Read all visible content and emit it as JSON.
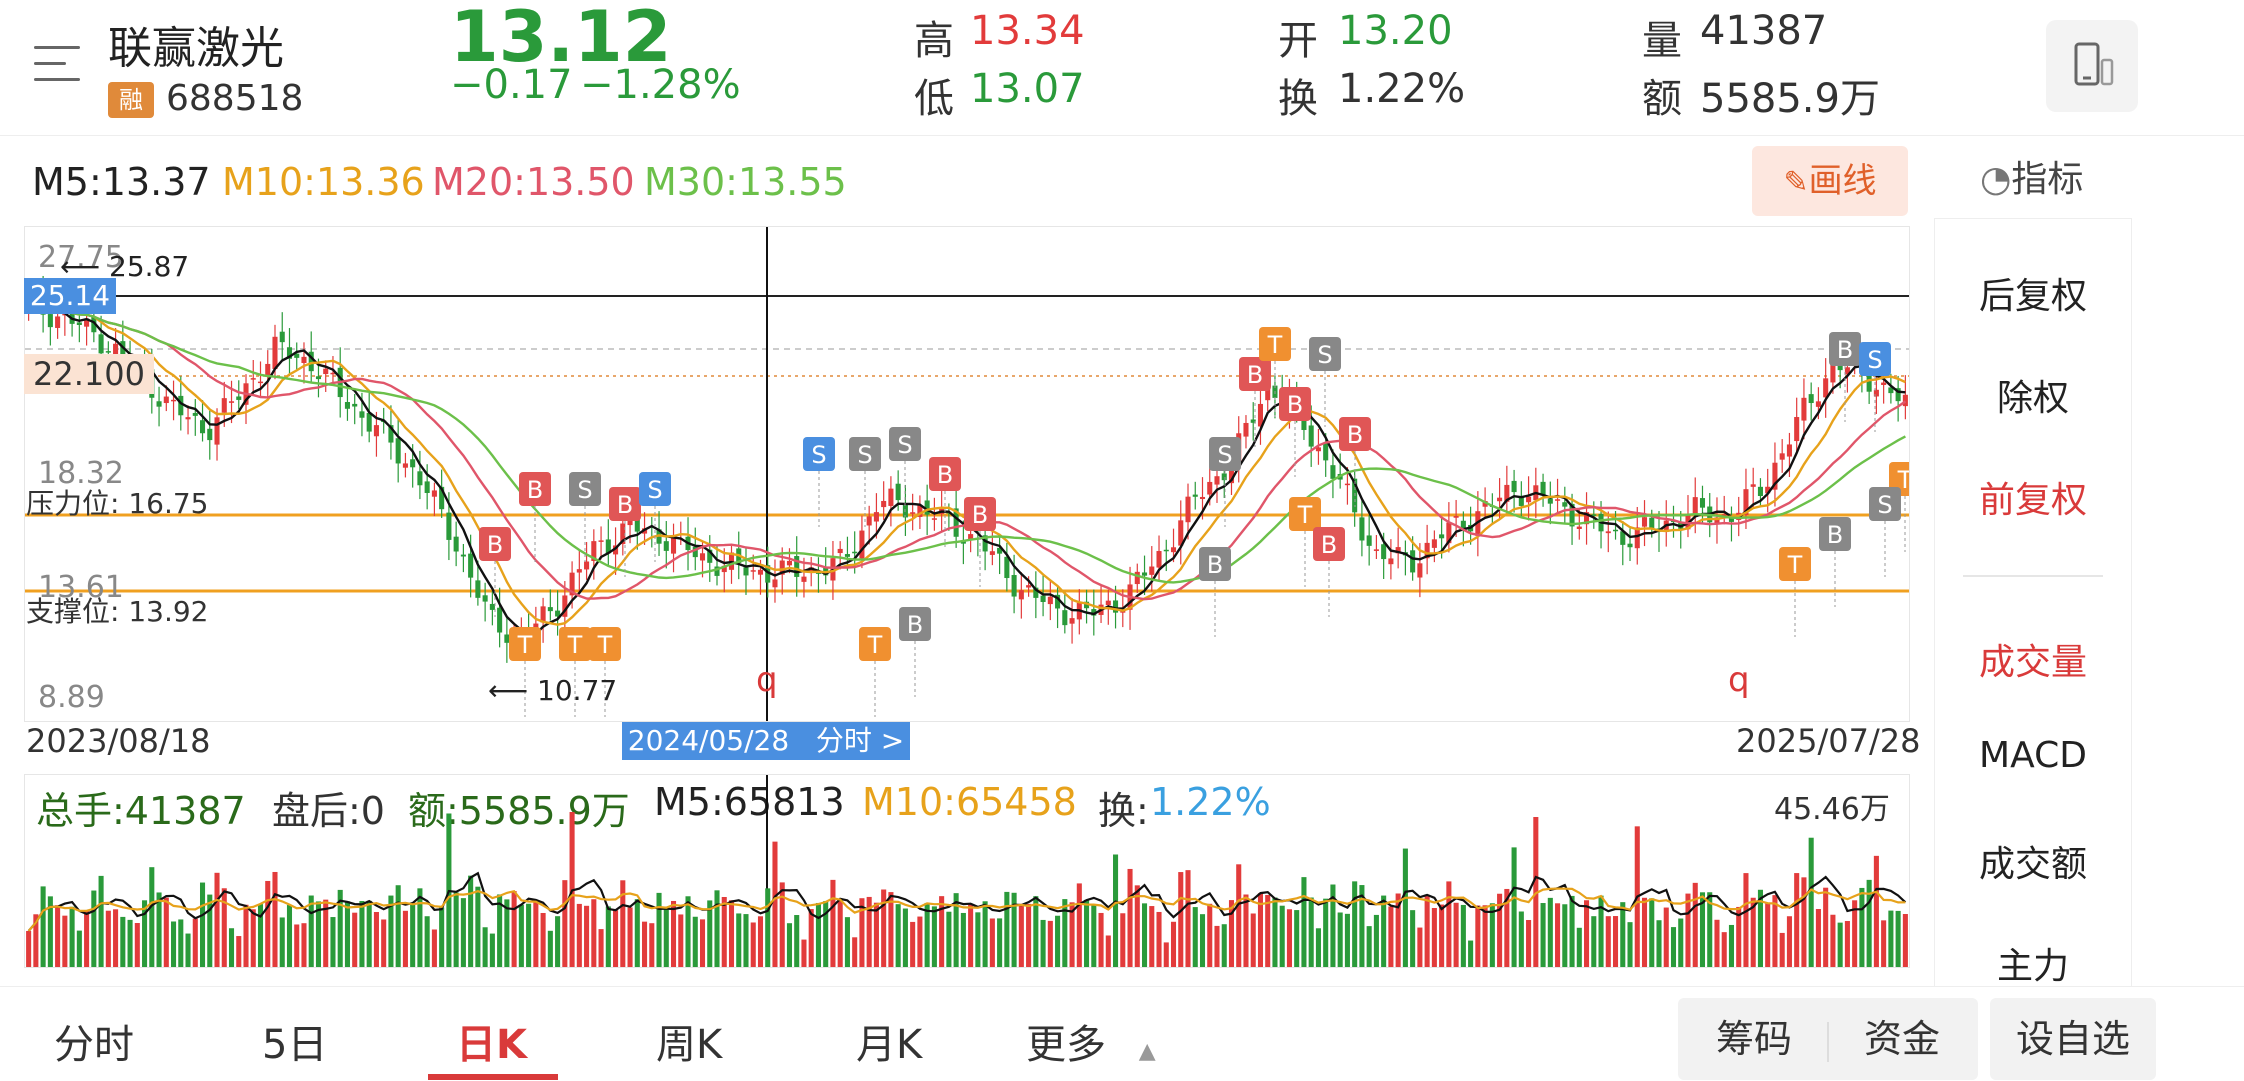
{
  "header": {
    "stock_name": "联赢激光",
    "rong_badge": "融",
    "stock_code": "688518",
    "price": "13.12",
    "change": "−0.17",
    "change_pct": "−1.28%",
    "quotes": {
      "high_label": "高",
      "high_value": "13.34",
      "low_label": "低",
      "low_value": "13.07",
      "open_label": "开",
      "open_value": "13.20",
      "turnover_label": "换",
      "turnover_value": "1.22%",
      "volume_label": "量",
      "volume_value": "41387",
      "amount_label": "额",
      "amount_value": "5585.9万"
    }
  },
  "ma_legend": {
    "m5": "M5:13.37",
    "m10": "M10:13.36",
    "m20": "M20:13.50",
    "m30": "M30:13.55"
  },
  "toolbar": {
    "draw_label": "画线",
    "indicator_label": "指标"
  },
  "side_panel": {
    "items": [
      "后复权",
      "除权",
      "前复权",
      "成交量",
      "MACD",
      "成交额",
      "主力"
    ]
  },
  "chart_data": {
    "type": "candlestick",
    "title": "",
    "price_axis_labels": [
      "25.87",
      "25.14",
      "22.100",
      "18.32",
      "13.61",
      "8.89"
    ],
    "partial_top_label": "27.75",
    "annotations": {
      "max_marker": "25.87",
      "min_marker": "10.77",
      "current_line": "22.100",
      "resistance": "压力位: 16.75",
      "support": "支撑位: 13.92",
      "marker_q": "q"
    },
    "x_labels": {
      "start": "2023/08/18",
      "cursor": "2024/05/28",
      "cursor_action": "分时 >",
      "end": "2025/07/28"
    },
    "close_path_approx": [
      24.2,
      23.8,
      23.0,
      21.8,
      20.3,
      19.4,
      20.8,
      22.6,
      22.0,
      20.5,
      19.2,
      17.6,
      15.2,
      12.0,
      11.2,
      12.8,
      14.8,
      15.6,
      15.2,
      14.4,
      14.0,
      13.8,
      13.9,
      14.2,
      16.6,
      16.4,
      15.8,
      14.8,
      13.2,
      12.4,
      12.2,
      12.9,
      14.6,
      16.8,
      18.2,
      21.2,
      19.6,
      17.4,
      14.6,
      14.2,
      15.4,
      16.2,
      17.1,
      16.6,
      15.8,
      15.2,
      15.6,
      16.2,
      16.0,
      17.2,
      19.8,
      22.0,
      21.4,
      20.4
    ]
  },
  "volume_legend": {
    "total": "总手:41387",
    "after_hours": "盘后:0",
    "amount": "额:5585.9万",
    "m5": "M5:65813",
    "m10": "M10:65458",
    "turnover_prefix": "换:",
    "turnover_value": "1.22%",
    "max_label": "45.46万"
  },
  "tabs": [
    "分时",
    "5日",
    "日K",
    "周K",
    "月K",
    "更多"
  ],
  "bottom_buttons": {
    "chips": "筹码",
    "funds": "资金",
    "add_watch": "设自选"
  },
  "colors": {
    "up": "#e23b3b",
    "down": "#2a9a3a",
    "m10": "#e7a21b",
    "m20": "#e0566a",
    "m30": "#6cc04a",
    "accent": "#d93a3a"
  }
}
